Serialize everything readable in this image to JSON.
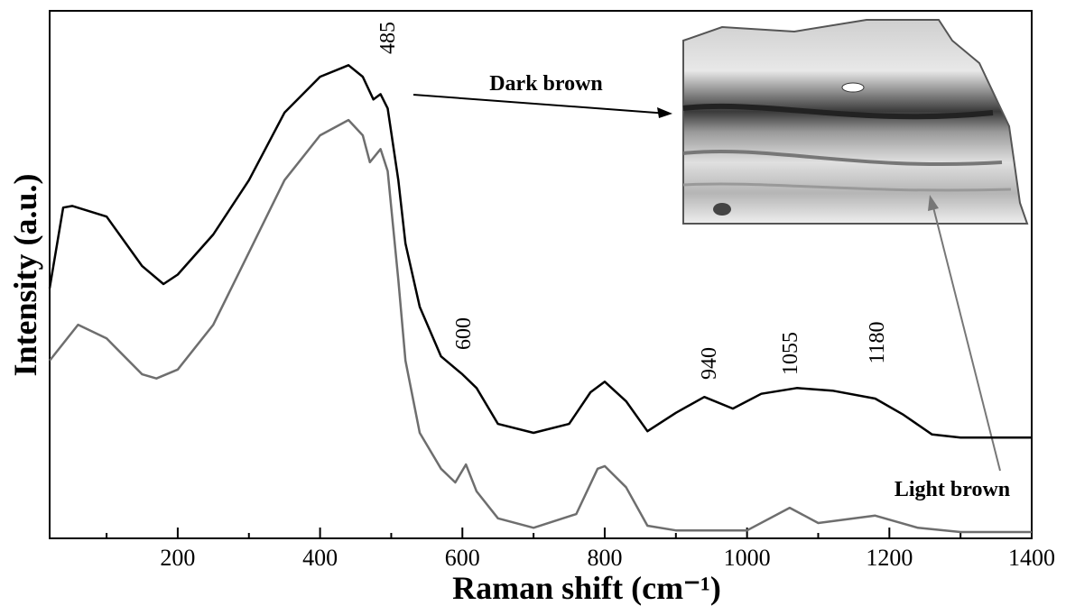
{
  "chart_data": {
    "type": "line",
    "x_label": "Raman shift (cm⁻¹)",
    "y_label": "Intensity (a.u.)",
    "xlim": [
      20,
      1400
    ],
    "ylim": [
      0,
      100
    ],
    "xticks": [
      200,
      400,
      600,
      800,
      1000,
      1200,
      1400
    ],
    "xminorticks": [
      100,
      300,
      500,
      700,
      900,
      1100,
      1300
    ],
    "annotations": [
      "485",
      "600",
      "940",
      "1055",
      "1180"
    ],
    "series": [
      {
        "name": "Dark brown",
        "color": "#000000",
        "x": [
          20,
          39,
          52,
          100,
          150,
          180,
          200,
          250,
          300,
          350,
          400,
          440,
          460,
          475,
          485,
          495,
          510,
          520,
          540,
          570,
          600,
          620,
          650,
          700,
          750,
          780,
          800,
          830,
          860,
          900,
          940,
          980,
          1020,
          1070,
          1120,
          1180,
          1220,
          1260,
          1300,
          1400
        ],
        "values": [
          47.4,
          62.7,
          63,
          61,
          51.6,
          48.2,
          50,
          57.6,
          67.9,
          80.7,
          87.5,
          89.7,
          87.5,
          83.2,
          84.2,
          81.5,
          67.9,
          55.9,
          43.9,
          34.5,
          31.1,
          28.5,
          21.7,
          20,
          21.7,
          27.7,
          29.7,
          26,
          20.3,
          23.8,
          26.8,
          24.6,
          27.4,
          28.5,
          28,
          26.5,
          23.4,
          19.7,
          19.1,
          19.1
        ]
      },
      {
        "name": "Light brown",
        "color": "#6e6e6e",
        "x": [
          20,
          60,
          100,
          150,
          170,
          200,
          250,
          300,
          350,
          400,
          440,
          460,
          470,
          485,
          495,
          510,
          520,
          540,
          570,
          590,
          605,
          620,
          650,
          700,
          760,
          790,
          800,
          830,
          860,
          900,
          1000,
          1060,
          1100,
          1180,
          1240,
          1300,
          1400
        ],
        "values": [
          33.7,
          40.5,
          37.9,
          31.1,
          30.3,
          32,
          40.5,
          54.2,
          67.9,
          76.4,
          79.3,
          76.4,
          71.3,
          73.8,
          69.6,
          49,
          33.7,
          20,
          13.2,
          10.6,
          14,
          8.9,
          3.8,
          2,
          4.6,
          13.2,
          13.7,
          9.7,
          2.4,
          1.5,
          1.5,
          5.8,
          2.9,
          4.3,
          2,
          1.2,
          1.2
        ]
      }
    ]
  }
}
